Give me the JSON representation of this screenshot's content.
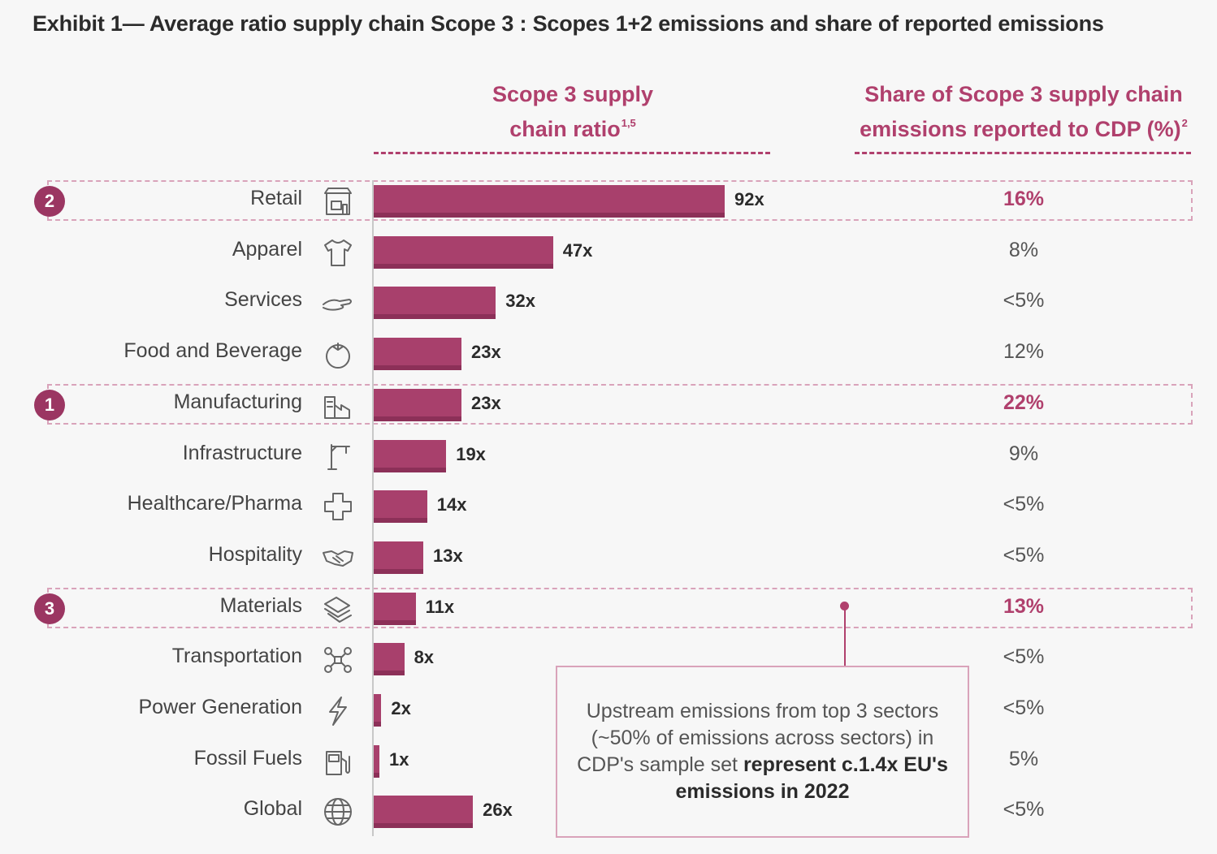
{
  "title": "Exhibit 1— Average ratio supply chain Scope 3 : Scopes 1+2 emissions and share of reported emissions",
  "headers": {
    "ratio_line1": "Scope 3 supply",
    "ratio_line2": "chain ratio",
    "ratio_note": "1,5",
    "share_line1": "Share of Scope 3 supply chain",
    "share_line2": "emissions reported to CDP (%)",
    "share_note": "2"
  },
  "callout": {
    "text_plain": "Upstream emissions from top 3 sectors (~50% of emissions across sectors) in CDP's sample set ",
    "text_bold": "represent c.1.4x EU's emissions in 2022"
  },
  "colors": {
    "accent": "#b0406d",
    "bar": "#a8406c",
    "bar_shade": "#8c3058",
    "rank_badge": "#9b3662"
  },
  "chart_data": {
    "type": "bar",
    "orientation": "horizontal",
    "categories": [
      "Retail",
      "Apparel",
      "Services",
      "Food and Beverage",
      "Manufacturing",
      "Infrastructure",
      "Healthcare/Pharma",
      "Hospitality",
      "Materials",
      "Transportation",
      "Power Generation",
      "Fossil Fuels",
      "Global"
    ],
    "values": [
      92,
      47,
      32,
      23,
      23,
      19,
      14,
      13,
      11,
      8,
      2,
      1,
      26
    ],
    "value_labels": [
      "92x",
      "47x",
      "32x",
      "23x",
      "23x",
      "19x",
      "14x",
      "13x",
      "11x",
      "8x",
      "2x",
      "1x",
      "26x"
    ],
    "share_labels": [
      "16%",
      "8%",
      "<5%",
      "12%",
      "22%",
      "9%",
      "<5%",
      "<5%",
      "13%",
      "<5%",
      "<5%",
      "5%",
      "<5%"
    ],
    "ranks": [
      "2",
      "",
      "",
      "",
      "1",
      "",
      "",
      "",
      "3",
      "",
      "",
      "",
      ""
    ],
    "icons": [
      "store-icon",
      "tshirt-icon",
      "hand-icon",
      "tomato-icon",
      "factory-icon",
      "crane-icon",
      "medical-cross-icon",
      "handshake-icon",
      "layers-icon",
      "network-icon",
      "lightning-icon",
      "fuel-pump-icon",
      "globe-icon"
    ],
    "xlim": [
      0,
      92
    ],
    "grid": false
  }
}
